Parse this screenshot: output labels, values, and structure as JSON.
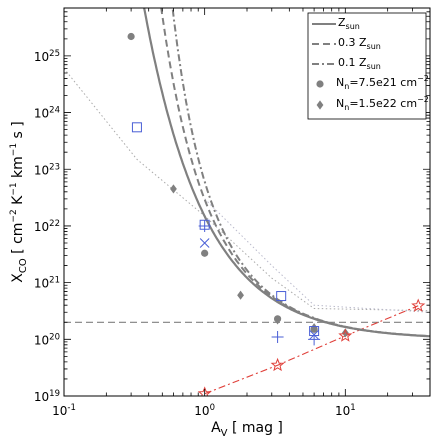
{
  "chart_data": {
    "type": "line",
    "xlabel": "A_V [ mag ]",
    "ylabel": "X_CO [ cm^-2 K^-1 km^-1 s ]",
    "xscale": "log",
    "yscale": "log",
    "xlim": [
      0.1,
      40
    ],
    "ylim": [
      1e+19,
      7e+25
    ],
    "grid": false,
    "legend_position": "top-right",
    "legend": [
      {
        "label": "Z_sun",
        "style": "solid",
        "color": "#808080"
      },
      {
        "label": "0.3 Z_sun",
        "style": "dashed",
        "color": "#808080"
      },
      {
        "label": "0.1 Z_sun",
        "style": "dashdot",
        "color": "#808080"
      },
      {
        "label": "N_n=7.5e21 cm^-2",
        "style": "marker-circle",
        "color": "#808080"
      },
      {
        "label": "N_n=1.5e22 cm^-2",
        "style": "marker-diamond",
        "color": "#808080"
      }
    ],
    "curve_params": {
      "A": 1e+20,
      "a": 5.0
    },
    "series": [
      {
        "key": "zsun",
        "style": "solid",
        "color": "#808080",
        "x_range": [
          0.3,
          40
        ],
        "av_shift": 0.0
      },
      {
        "key": "z03",
        "style": "dashed",
        "color": "#808080",
        "x_range": [
          0.33,
          40
        ],
        "av_shift": 0.12
      },
      {
        "key": "z01",
        "style": "dashdot",
        "color": "#808080",
        "x_range": [
          0.33,
          40
        ],
        "av_shift": 0.22
      }
    ],
    "reference_lines": [
      {
        "key": "hline",
        "style": "dashed",
        "color": "#808080",
        "points": [
          [
            0.1,
            2e+20
          ],
          [
            40,
            2e+20
          ]
        ]
      },
      {
        "key": "dotted-a",
        "style": "dotted",
        "color": "#aaaaaa",
        "points": [
          [
            0.1,
            6e+24
          ],
          [
            0.33,
            1.5e+23
          ],
          [
            1.0,
            1.5e+22
          ],
          [
            3.0,
            1.2e+21
          ],
          [
            6.0,
            3.5e+20
          ],
          [
            40,
            3.2e+20
          ]
        ]
      },
      {
        "key": "dotted-b",
        "style": "dotted",
        "color": "#bbbbcc",
        "points": [
          [
            1.0,
            3e+22
          ],
          [
            3.0,
            2e+21
          ],
          [
            6.0,
            4e+20
          ],
          [
            40,
            3e+20
          ]
        ]
      },
      {
        "key": "red-dashdot",
        "style": "dashdot",
        "color": "#e0403a",
        "points": [
          [
            1.0,
            1.1e+19
          ],
          [
            3.3,
            3.5e+19
          ],
          [
            10.0,
            1.15e+20
          ],
          [
            33,
            3.9e+20
          ]
        ]
      }
    ],
    "circle_points": [
      [
        0.3,
        2.2e+25
      ],
      [
        1.0,
        3.3e+21
      ],
      [
        3.3,
        2.3e+20
      ],
      [
        6.0,
        1.5e+20
      ]
    ],
    "diamond_points": [
      [
        0.6,
        4.5e+22
      ],
      [
        1.8,
        6e+20
      ],
      [
        3.3,
        2.2e+20
      ],
      [
        6.0,
        1.6e+20
      ],
      [
        10.0,
        1.3e+20
      ]
    ],
    "blue_squares": [
      [
        0.33,
        5.5e+23
      ],
      [
        1.0,
        1.05e+22
      ],
      [
        3.5,
        5.8e+20
      ],
      [
        6.0,
        1.4e+20
      ]
    ],
    "blue_plus": [
      [
        1.0,
        1e+22
      ],
      [
        3.3,
        1.1e+20
      ],
      [
        6.0,
        1e+20
      ]
    ],
    "blue_cross": [
      [
        1.0,
        5e+21
      ],
      [
        6.0,
        1.2e+20
      ]
    ],
    "red_stars": [
      [
        1.0,
        1.1e+19
      ],
      [
        3.3,
        3.5e+19
      ],
      [
        10.0,
        1.15e+20
      ],
      [
        33,
        3.9e+20
      ]
    ],
    "x_ticks": [
      {
        "value": 0.1,
        "base": "10",
        "exp": "-1"
      },
      {
        "value": 1,
        "base": "10",
        "exp": "0"
      },
      {
        "value": 10,
        "base": "10",
        "exp": "1"
      }
    ],
    "y_ticks": [
      {
        "value": 1e+19,
        "base": "10",
        "exp": "19"
      },
      {
        "value": 1e+20,
        "base": "10",
        "exp": "20"
      },
      {
        "value": 1e+21,
        "base": "10",
        "exp": "21"
      },
      {
        "value": 1e+22,
        "base": "10",
        "exp": "22"
      },
      {
        "value": 1e+23,
        "base": "10",
        "exp": "23"
      },
      {
        "value": 1e+24,
        "base": "10",
        "exp": "24"
      },
      {
        "value": 1e+25,
        "base": "10",
        "exp": "25"
      }
    ],
    "axis_label_parts": {
      "x": {
        "main": "A",
        "sub": "V",
        "rest": " [ mag ]"
      },
      "y": {
        "main": "X",
        "sub": "CO",
        "p1": " [ cm",
        "e1": "−2",
        "p2": " K",
        "e2": "−1",
        "p3": " km",
        "e3": "−1",
        "p4": " s ]"
      }
    },
    "legend_text_parts": [
      {
        "main": "Z",
        "sub": "sun"
      },
      {
        "main": "0.3 Z",
        "sub": "sun"
      },
      {
        "main": "0.1 Z",
        "sub": "sun"
      },
      {
        "main": "N",
        "sub": "n",
        "rest": "=7.5e21 cm",
        "sup": "−2"
      },
      {
        "main": "N",
        "sub": "n",
        "rest": "=1.5e22 cm",
        "sup": "−2"
      }
    ]
  }
}
